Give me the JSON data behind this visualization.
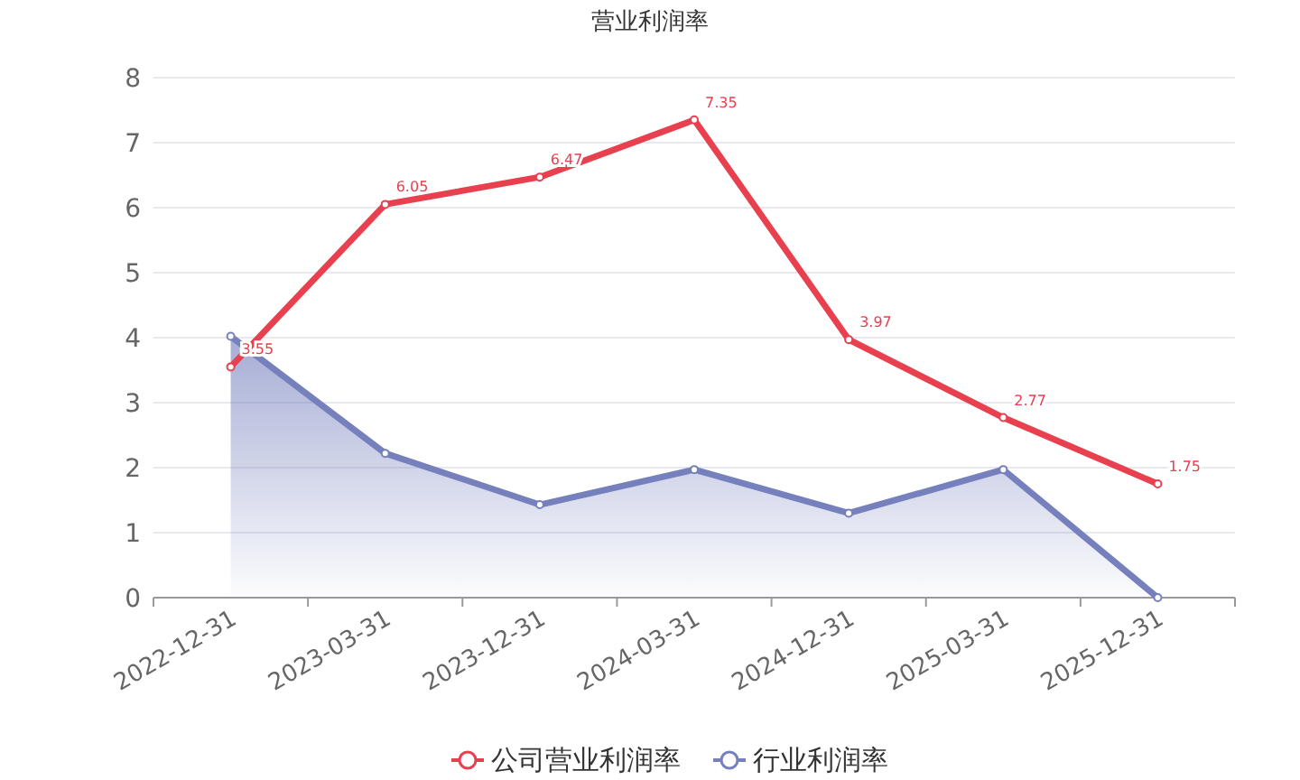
{
  "chart_data": {
    "type": "line",
    "title": "营业利润率",
    "categories": [
      "2022-12-31",
      "2023-03-31",
      "2023-12-31",
      "2024-03-31",
      "2024-12-31",
      "2025-03-31",
      "2025-12-31"
    ],
    "series": [
      {
        "name": "公司营业利润率",
        "color": "#e8404f",
        "values": [
          3.55,
          6.05,
          6.47,
          7.35,
          3.97,
          2.77,
          1.75
        ],
        "value_labels": [
          "3.55",
          "6.05",
          "6.47",
          "7.35",
          "3.97",
          "2.77",
          "1.75"
        ]
      },
      {
        "name": "行业利润率",
        "type": "area",
        "color": "#7580bd",
        "values": [
          4.02,
          2.22,
          1.43,
          1.97,
          1.3,
          1.97,
          0
        ]
      }
    ],
    "ylim": [
      0,
      8
    ],
    "yticks": [
      0,
      1,
      2,
      3,
      4,
      5,
      6,
      7,
      8
    ],
    "grid": "y",
    "legend": "bottom",
    "marker": "circle"
  }
}
